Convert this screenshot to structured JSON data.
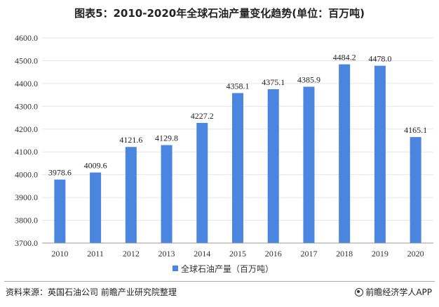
{
  "title": "图表5：2010-2020年全球石油产量变化趋势(单位：百万吨)",
  "source_text": "资料来源：英国石油公司 前瞻产业研究院整理",
  "brand_text": "前瞻经济学人APP",
  "colors": {
    "bar": "#4a86e0",
    "axis": "#999999",
    "grid": "#e6e6e6"
  },
  "chart_data": {
    "type": "bar",
    "categories": [
      "2010",
      "2011",
      "2012",
      "2013",
      "2014",
      "2015",
      "2016",
      "2017",
      "2018",
      "2019",
      "2020"
    ],
    "series": [
      {
        "name": "全球石油产量（百万吨）",
        "values": [
          3978.6,
          4009.6,
          4121.6,
          4129.8,
          4227.2,
          4358.1,
          4375.1,
          4385.9,
          4484.2,
          4478.0,
          4165.1
        ]
      }
    ],
    "data_labels": [
      "3978.6",
      "4009.6",
      "4121.6",
      "4129.8",
      "4227.2",
      "4358.1",
      "4375.1",
      "4385.9",
      "4484.2",
      "4478.0",
      "4165.1"
    ],
    "ylim": [
      3700.0,
      4600.0
    ],
    "yticks": [
      "3700.0",
      "3800.0",
      "3900.0",
      "4000.0",
      "4100.0",
      "4200.0",
      "4300.0",
      "4400.0",
      "4500.0",
      "4600.0"
    ],
    "xlabel": "",
    "ylabel": "",
    "legend_position": "bottom"
  }
}
